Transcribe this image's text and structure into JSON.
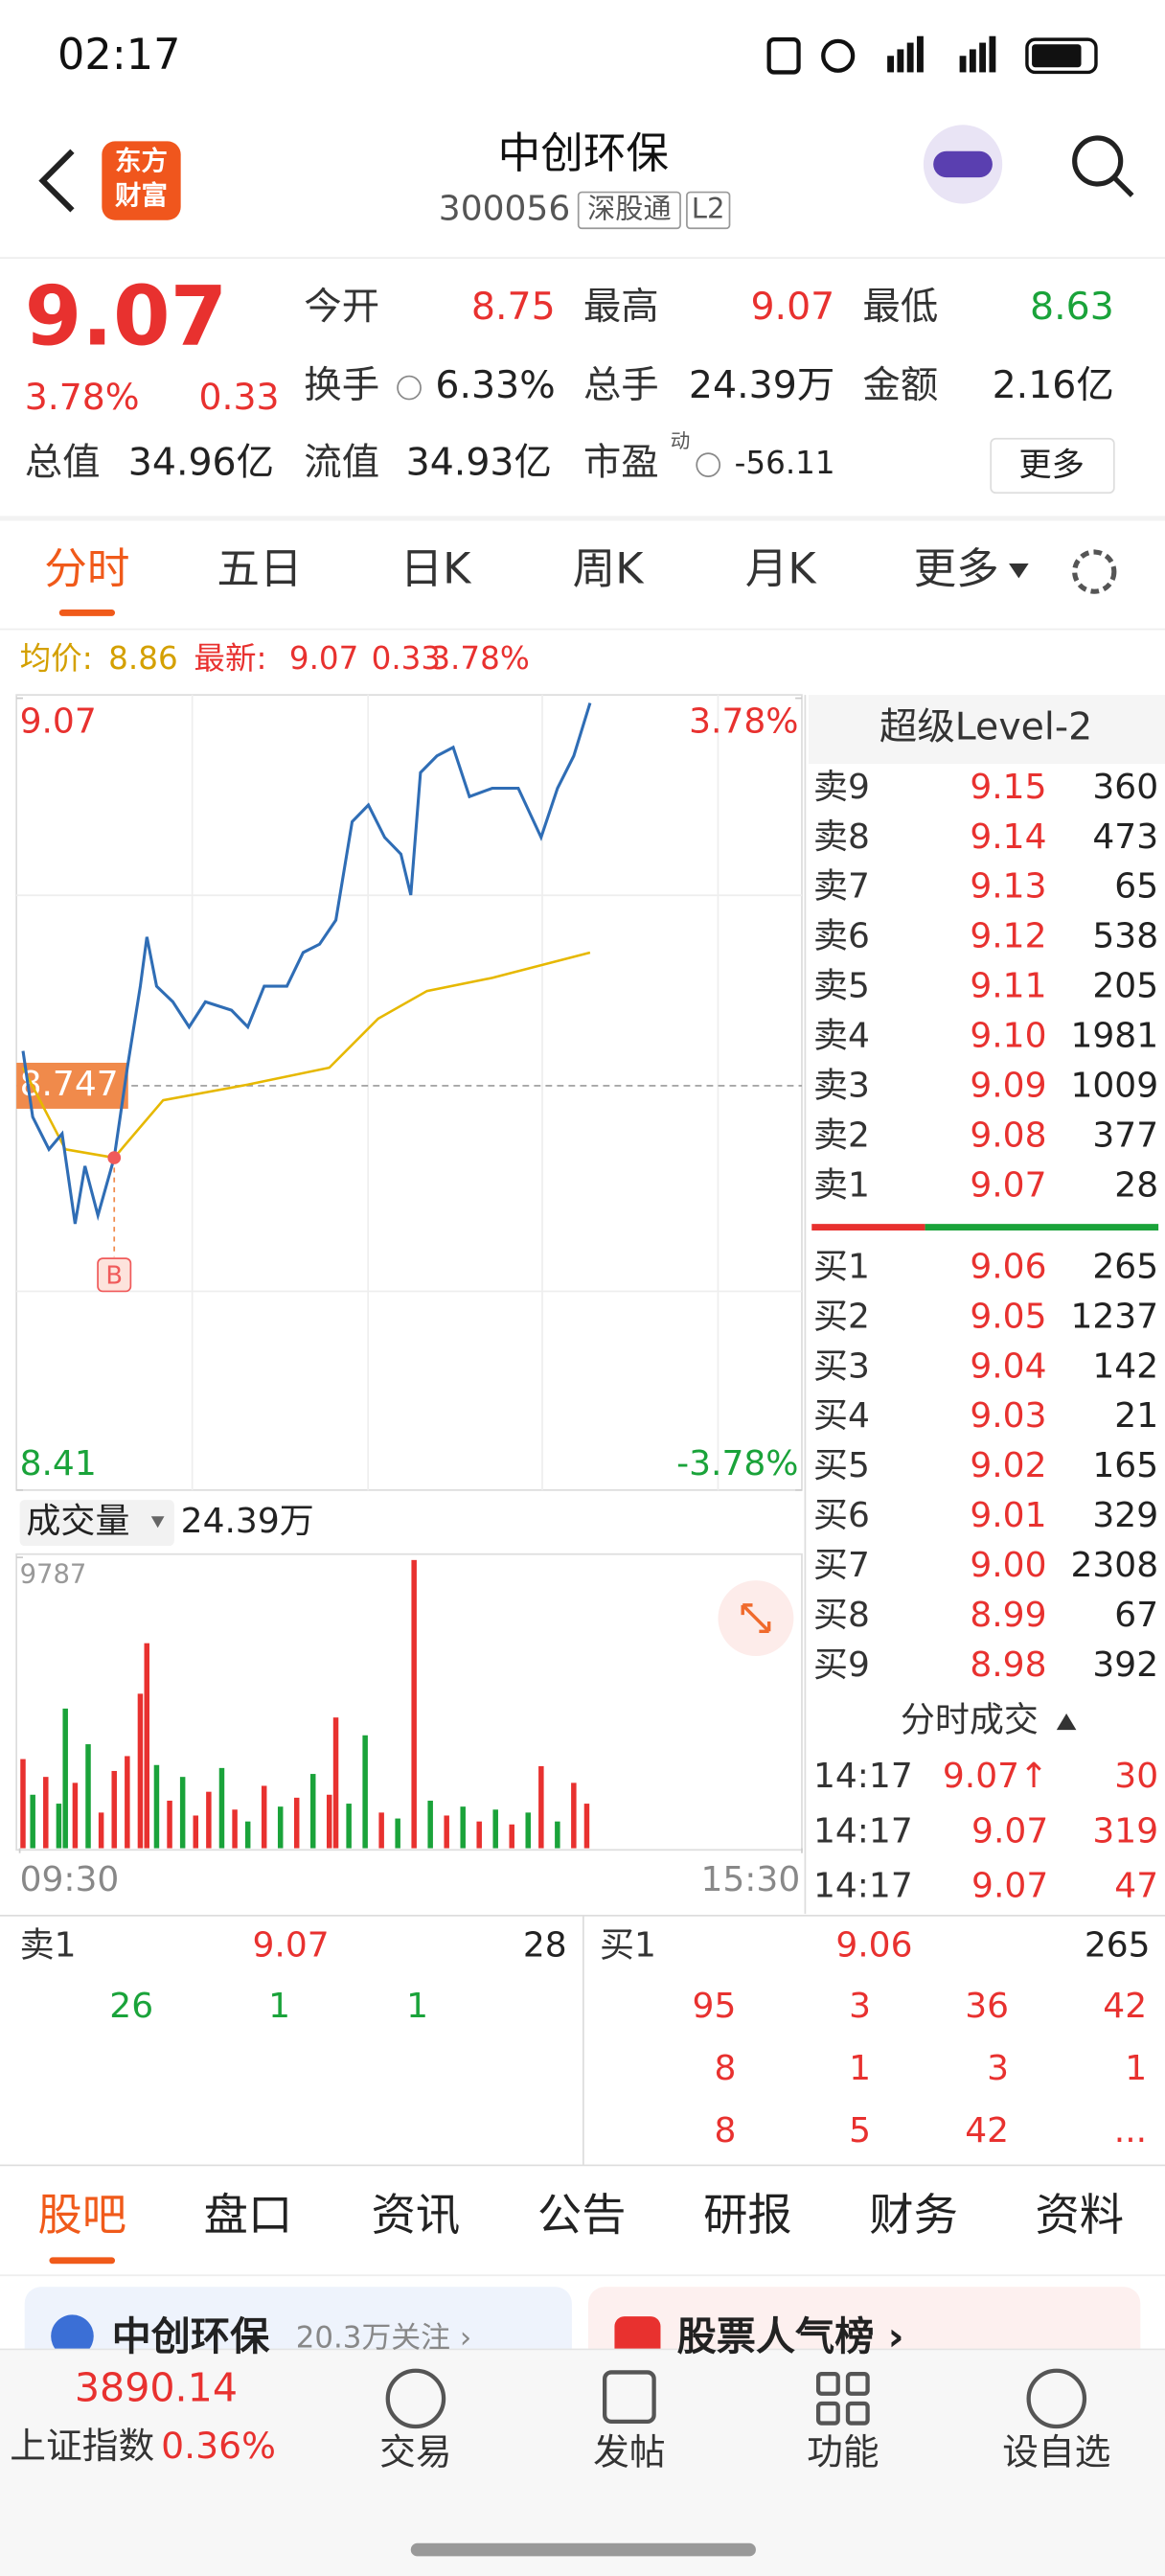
{
  "status_bar": {
    "time": "02:17"
  },
  "header": {
    "logo": [
      "东方",
      "财富"
    ],
    "name": "中创环保",
    "code": "300056",
    "tags": [
      "深股通",
      "L2"
    ]
  },
  "quote": {
    "price": "9.07",
    "change_pct": "3.78%",
    "change": "0.33",
    "stats": [
      {
        "label": "今开",
        "value": "8.75"
      },
      {
        "label": "最高",
        "value": "9.07"
      },
      {
        "label": "最低",
        "value": "8.63"
      },
      {
        "label": "换手",
        "value": "6.33%"
      },
      {
        "label": "总手",
        "value": "24.39万"
      },
      {
        "label": "金额",
        "value": "2.16亿"
      },
      {
        "label": "总值",
        "value": "34.96亿"
      },
      {
        "label": "流值",
        "value": "34.93亿"
      },
      {
        "label": "市盈",
        "sup": "动",
        "value": "-56.11"
      }
    ],
    "more": "更多"
  },
  "tabs": [
    "分时",
    "五日",
    "日K",
    "周K",
    "月K",
    "更多"
  ],
  "intraday": {
    "legend": {
      "avg_label": "均价:",
      "avg": "8.86",
      "latest_label": "最新:",
      "latest": "9.07",
      "change": "0.33",
      "pct": "3.78%"
    },
    "xlim": [
      0,
      240
    ],
    "xticks": [
      {
        "value": 0,
        "label": "09:30"
      },
      {
        "value": 240,
        "label": "15:30"
      }
    ],
    "ylim": [
      8.41,
      9.07
    ],
    "yticks": [
      9.07,
      8.41
    ],
    "y2lim": [
      -3.78,
      3.78
    ],
    "y2ticks": [
      {
        "value": 3.78,
        "label": "3.78%"
      },
      {
        "value": -3.78,
        "label": "-3.78%"
      }
    ],
    "prev_close": 8.747,
    "price_x": [
      1,
      4,
      9,
      13,
      17,
      20,
      24,
      29,
      33,
      37,
      39,
      42,
      47,
      52,
      57,
      65,
      70,
      75,
      82,
      87,
      92,
      97,
      102,
      107,
      112,
      117,
      120,
      123,
      128,
      133,
      138,
      145,
      153,
      160,
      165,
      170,
      175
    ],
    "price": [
      8.776,
      8.721,
      8.694,
      8.707,
      8.632,
      8.68,
      8.639,
      8.687,
      8.762,
      8.83,
      8.871,
      8.83,
      8.817,
      8.796,
      8.817,
      8.81,
      8.796,
      8.83,
      8.83,
      8.858,
      8.865,
      8.885,
      8.967,
      8.981,
      8.954,
      8.94,
      8.906,
      9.008,
      9.022,
      9.029,
      8.988,
      8.995,
      8.995,
      8.954,
      8.995,
      9.022,
      9.066
    ],
    "avg_x": [
      1,
      14,
      29,
      44,
      70,
      95,
      110,
      125,
      145,
      175
    ],
    "avg": [
      8.762,
      8.694,
      8.687,
      8.735,
      8.748,
      8.762,
      8.803,
      8.826,
      8.837,
      8.858
    ],
    "price_color": "#2f6db5",
    "avg_color": "#e6b800",
    "marker": {
      "x": 29,
      "y": 8.687,
      "label": "B"
    },
    "volume_label": "成交量",
    "volume_total": "24.39万",
    "vol_ylim": [
      0,
      9787
    ],
    "vol_yticks": [
      9787
    ],
    "volume_x": [
      1,
      4,
      8,
      12,
      14,
      17,
      21,
      25,
      29,
      33,
      37,
      39,
      42,
      46,
      50,
      54,
      58,
      62,
      66,
      70,
      75,
      80,
      85,
      90,
      95,
      97,
      101,
      106,
      111,
      116,
      121,
      126,
      131,
      136,
      141,
      146,
      151,
      156,
      160,
      165,
      170,
      174
    ],
    "volume": [
      3000,
      1800,
      2400,
      1500,
      4700,
      2200,
      3500,
      1200,
      2600,
      3100,
      5200,
      6900,
      2800,
      1600,
      2400,
      1100,
      1900,
      2700,
      1300,
      900,
      2100,
      1400,
      1700,
      2500,
      1800,
      4400,
      1500,
      3800,
      1200,
      1000,
      9700,
      1600,
      1100,
      1400,
      900,
      1300,
      800,
      1200,
      2760,
      900,
      2200,
      1500
    ],
    "volume_colors": [
      "#e8312f",
      "#1aa33a",
      "#e8312f",
      "#1aa33a",
      "#1aa33a",
      "#e8312f",
      "#1aa33a",
      "#e8312f",
      "#e8312f",
      "#e8312f",
      "#e8312f",
      "#e8312f",
      "#1aa33a",
      "#e8312f",
      "#1aa33a",
      "#e8312f",
      "#e8312f",
      "#1aa33a",
      "#e8312f",
      "#1aa33a",
      "#e8312f",
      "#1aa33a",
      "#e8312f",
      "#1aa33a",
      "#e8312f",
      "#e8312f",
      "#1aa33a",
      "#1aa33a",
      "#e8312f",
      "#1aa33a",
      "#e8312f",
      "#1aa33a",
      "#e8312f",
      "#1aa33a",
      "#e8312f",
      "#1aa33a",
      "#e8312f",
      "#1aa33a",
      "#e8312f",
      "#1aa33a",
      "#e8312f",
      "#e8312f"
    ]
  },
  "orderbook": {
    "title": "超级Level-2",
    "asks": [
      [
        "卖9",
        "9.15",
        "360"
      ],
      [
        "卖8",
        "9.14",
        "473"
      ],
      [
        "卖7",
        "9.13",
        "65"
      ],
      [
        "卖6",
        "9.12",
        "538"
      ],
      [
        "卖5",
        "9.11",
        "205"
      ],
      [
        "卖4",
        "9.10",
        "1981"
      ],
      [
        "卖3",
        "9.09",
        "1009"
      ],
      [
        "卖2",
        "9.08",
        "377"
      ],
      [
        "卖1",
        "9.07",
        "28"
      ]
    ],
    "bids": [
      [
        "买1",
        "9.06",
        "265"
      ],
      [
        "买2",
        "9.05",
        "1237"
      ],
      [
        "买3",
        "9.04",
        "142"
      ],
      [
        "买4",
        "9.03",
        "21"
      ],
      [
        "买5",
        "9.02",
        "165"
      ],
      [
        "买6",
        "9.01",
        "329"
      ],
      [
        "买7",
        "9.00",
        "2308"
      ],
      [
        "买8",
        "8.99",
        "67"
      ],
      [
        "买9",
        "8.98",
        "392"
      ]
    ],
    "trades_title": "分时成交",
    "trades": [
      [
        "14:17",
        "9.07↑",
        "30"
      ],
      [
        "14:17",
        "9.07",
        "319"
      ],
      [
        "14:17",
        "9.07",
        "47"
      ]
    ]
  },
  "queue": {
    "ask": [
      "卖1",
      "9.07",
      "28"
    ],
    "ask_orders": [
      "26",
      "1",
      "1"
    ],
    "bid": [
      "买1",
      "9.06",
      "265"
    ],
    "bid_orders": [
      [
        "95",
        "3",
        "36",
        "42"
      ],
      [
        "8",
        "1",
        "3",
        "1"
      ],
      [
        "8",
        "5",
        "42",
        "..."
      ]
    ]
  },
  "bottom_tabs": [
    "股吧",
    "盘口",
    "资讯",
    "公告",
    "研报",
    "财务",
    "资料"
  ],
  "cards": {
    "left_title": "中创环保",
    "left_sub": "20.3万关注 ›",
    "right_title": "股票人气榜 ›"
  },
  "index": {
    "value": "3890.14",
    "name": "上证指数",
    "pct": "0.36%"
  },
  "nav": [
    "交易",
    "发帖",
    "功能",
    "设自选"
  ]
}
